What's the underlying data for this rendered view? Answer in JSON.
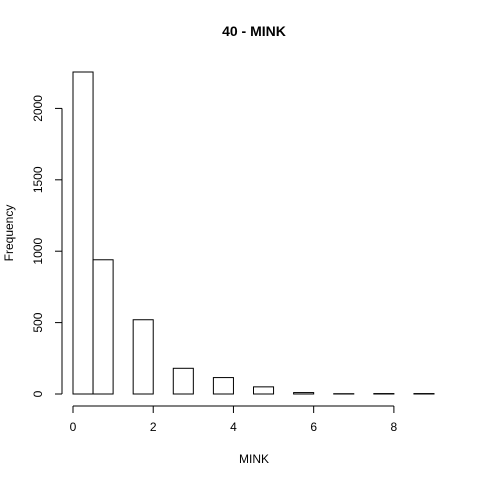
{
  "chart_data": {
    "type": "bar",
    "title": "40 - MINK",
    "xlabel": "MINK",
    "ylabel": "Frequency",
    "bin_width": 0.5,
    "bins": [
      {
        "x0": 0.0,
        "x1": 0.5,
        "count": 2255
      },
      {
        "x0": 0.5,
        "x1": 1.0,
        "count": 940
      },
      {
        "x0": 1.0,
        "x1": 1.5,
        "count": 0
      },
      {
        "x0": 1.5,
        "x1": 2.0,
        "count": 520
      },
      {
        "x0": 2.0,
        "x1": 2.5,
        "count": 0
      },
      {
        "x0": 2.5,
        "x1": 3.0,
        "count": 180
      },
      {
        "x0": 3.0,
        "x1": 3.5,
        "count": 0
      },
      {
        "x0": 3.5,
        "x1": 4.0,
        "count": 115
      },
      {
        "x0": 4.0,
        "x1": 4.5,
        "count": 0
      },
      {
        "x0": 4.5,
        "x1": 5.0,
        "count": 50
      },
      {
        "x0": 5.0,
        "x1": 5.5,
        "count": 0
      },
      {
        "x0": 5.5,
        "x1": 6.0,
        "count": 10
      },
      {
        "x0": 6.0,
        "x1": 6.5,
        "count": 0
      },
      {
        "x0": 6.5,
        "x1": 7.0,
        "count": 2
      },
      {
        "x0": 7.0,
        "x1": 7.5,
        "count": 0
      },
      {
        "x0": 7.5,
        "x1": 8.0,
        "count": 3
      },
      {
        "x0": 8.0,
        "x1": 8.5,
        "count": 0
      },
      {
        "x0": 8.5,
        "x1": 9.0,
        "count": 3
      }
    ],
    "xlim": [
      0,
      9
    ],
    "ylim": [
      0,
      2255
    ],
    "x_ticks": [
      0,
      2,
      4,
      6,
      8
    ],
    "x_tick_labels": [
      "0",
      "2",
      "4",
      "6",
      "8"
    ],
    "y_ticks": [
      0,
      500,
      1000,
      1500,
      2000
    ],
    "y_tick_labels": [
      "0",
      "500",
      "1000",
      "1500",
      "2000"
    ],
    "grid": false,
    "bar_fill": "#ffffff",
    "bar_stroke": "#000000"
  }
}
